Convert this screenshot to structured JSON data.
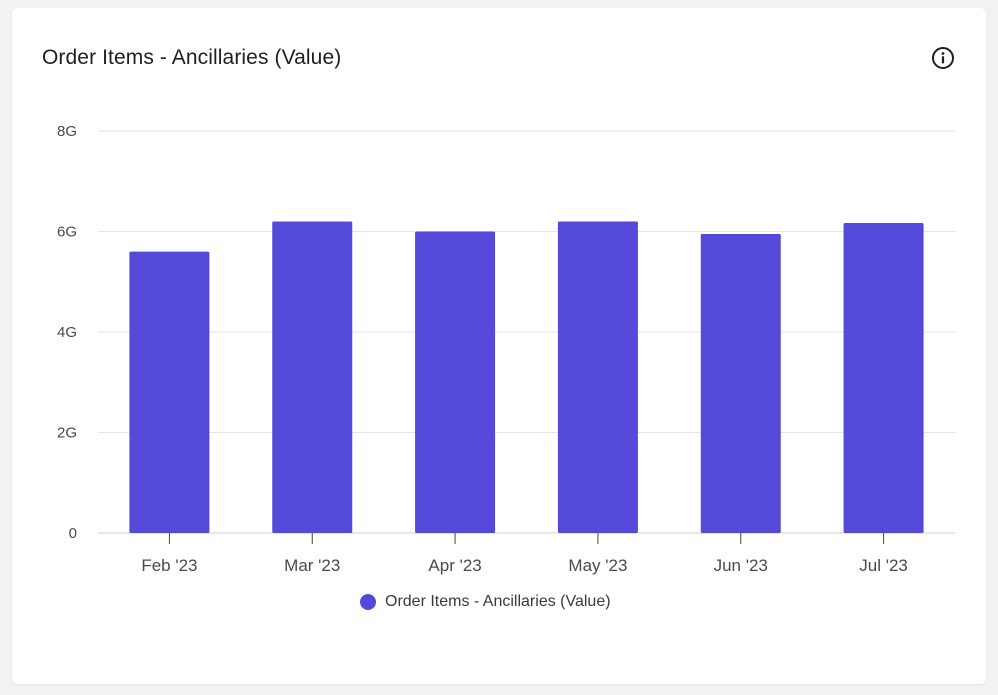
{
  "card": {
    "title": "Order Items - Ancillaries (Value)",
    "info_icon": "info-circle-icon"
  },
  "chart_data": {
    "type": "bar",
    "title": "Order Items - Ancillaries (Value)",
    "categories": [
      "Feb '23",
      "Mar '23",
      "Apr '23",
      "May '23",
      "Jun '23",
      "Jul '23"
    ],
    "series": [
      {
        "name": "Order Items - Ancillaries (Value)",
        "values": [
          5600000000,
          6200000000,
          6000000000,
          6200000000,
          5950000000,
          6170000000
        ],
        "color": "#5549d9"
      }
    ],
    "ylim": [
      0,
      8000000000
    ],
    "yticks": [
      {
        "value": 0,
        "label": "0"
      },
      {
        "value": 2000000000,
        "label": "2G"
      },
      {
        "value": 4000000000,
        "label": "4G"
      },
      {
        "value": 6000000000,
        "label": "6G"
      },
      {
        "value": 8000000000,
        "label": "8G"
      }
    ],
    "grid": true,
    "legend_position": "bottom-center"
  }
}
